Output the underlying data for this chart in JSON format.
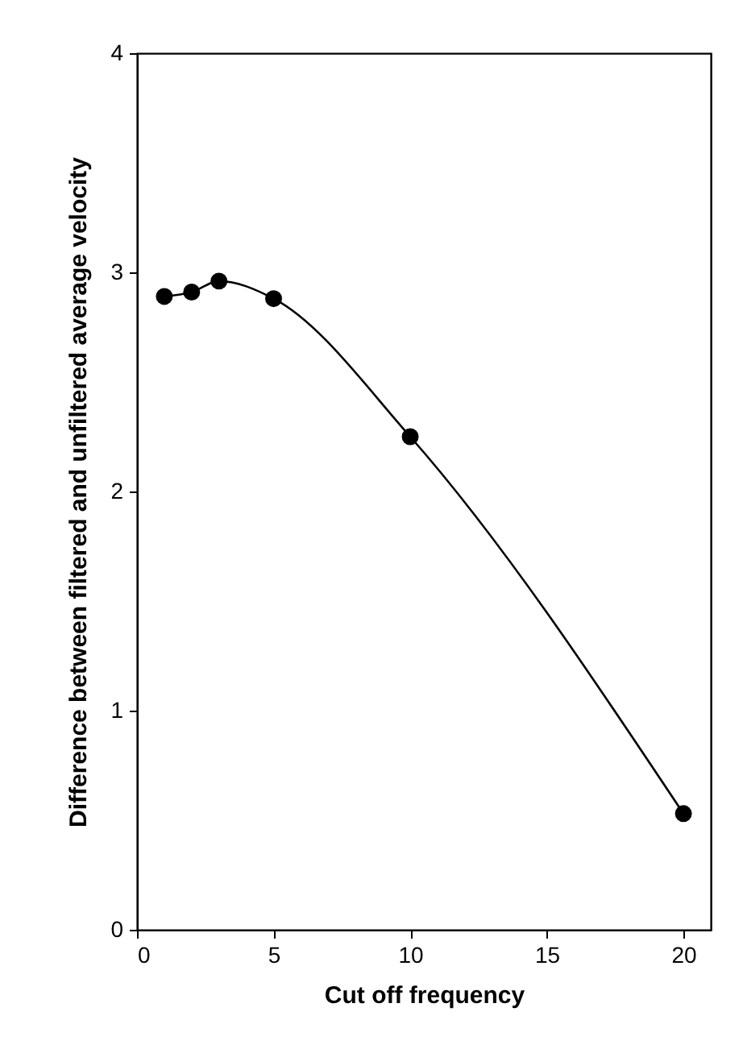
{
  "chart_data": {
    "type": "line",
    "xlabel": "Cut off frequency",
    "ylabel": "Difference between filtered and unfiltered average velocity",
    "x": [
      1,
      2,
      3,
      5,
      10,
      20
    ],
    "series": [
      {
        "color": "#000000",
        "values": [
          2.89,
          2.91,
          2.96,
          2.88,
          2.25,
          0.53
        ]
      }
    ],
    "xlim": [
      0,
      21
    ],
    "xticks": [
      0,
      5,
      10,
      15,
      20
    ],
    "ylim": [
      0,
      4
    ],
    "yticks": [
      0,
      1,
      2,
      3,
      4
    ],
    "marker": "circle",
    "line_style": "solid",
    "grid": false
  }
}
